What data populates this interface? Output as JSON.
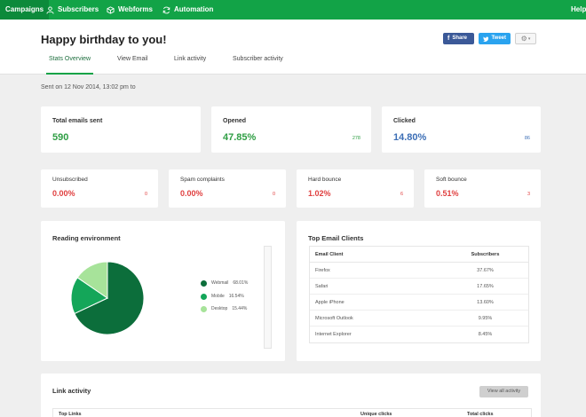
{
  "nav": {
    "items": [
      {
        "label": "Campaigns",
        "icon": "campaigns-icon"
      },
      {
        "label": "Subscribers",
        "icon": "user-icon"
      },
      {
        "label": "Webforms",
        "icon": "cube-icon"
      },
      {
        "label": "Automation",
        "icon": "refresh-icon"
      }
    ],
    "help": "Help"
  },
  "header": {
    "title": "Happy birthday to you!",
    "share_label": "Share",
    "tweet_label": "Tweet",
    "tabs": [
      {
        "label": "Stats Overview"
      },
      {
        "label": "View Email"
      },
      {
        "label": "Link activity"
      },
      {
        "label": "Subscriber activity"
      }
    ]
  },
  "sent": "Sent on 12 Nov 2014, 13:02 pm to",
  "stats_top": [
    {
      "label": "Total emails sent",
      "value": "590",
      "sub": ""
    },
    {
      "label": "Opened",
      "value": "47.85%",
      "sub": "278"
    },
    {
      "label": "Clicked",
      "value": "14.80%",
      "sub": "86"
    }
  ],
  "stats_bottom": [
    {
      "label": "Unsubscribed",
      "value": "0.00%",
      "sub": "0"
    },
    {
      "label": "Spam complaints",
      "value": "0.00%",
      "sub": "0"
    },
    {
      "label": "Hard bounce",
      "value": "1.02%",
      "sub": "6"
    },
    {
      "label": "Soft bounce",
      "value": "0.51%",
      "sub": "3"
    }
  ],
  "reading": {
    "title": "Reading environment",
    "legend": [
      {
        "name": "Webmail",
        "pct": "68.01%",
        "value": 68.01,
        "color": "#0c6e3b"
      },
      {
        "name": "Mobile",
        "pct": "16.54%",
        "value": 16.54,
        "color": "#14a659"
      },
      {
        "name": "Desktop",
        "pct": "15.44%",
        "value": 15.44,
        "color": "#a7e39a"
      }
    ]
  },
  "clients": {
    "title": "Top Email Clients",
    "col1": "Email Client",
    "col2": "Subscribers",
    "rows": [
      {
        "client": "Firefox",
        "value": "37.67%"
      },
      {
        "client": "Safari",
        "value": "17.65%"
      },
      {
        "client": "Apple iPhone",
        "value": "13.60%"
      },
      {
        "client": "Microsoft Outlook",
        "value": "9.95%"
      },
      {
        "client": "Internet Explorer",
        "value": "8.45%"
      }
    ]
  },
  "link_activity": {
    "title": "Link activity",
    "view_all": "View all activity",
    "col1": "Top Links",
    "col2": "Unique clicks",
    "col3": "Total clicks"
  },
  "colors": {
    "nav_green": "#12a347",
    "positive": "#2f9e44",
    "clicked": "#3d6fb6",
    "negative": "#e04040"
  }
}
